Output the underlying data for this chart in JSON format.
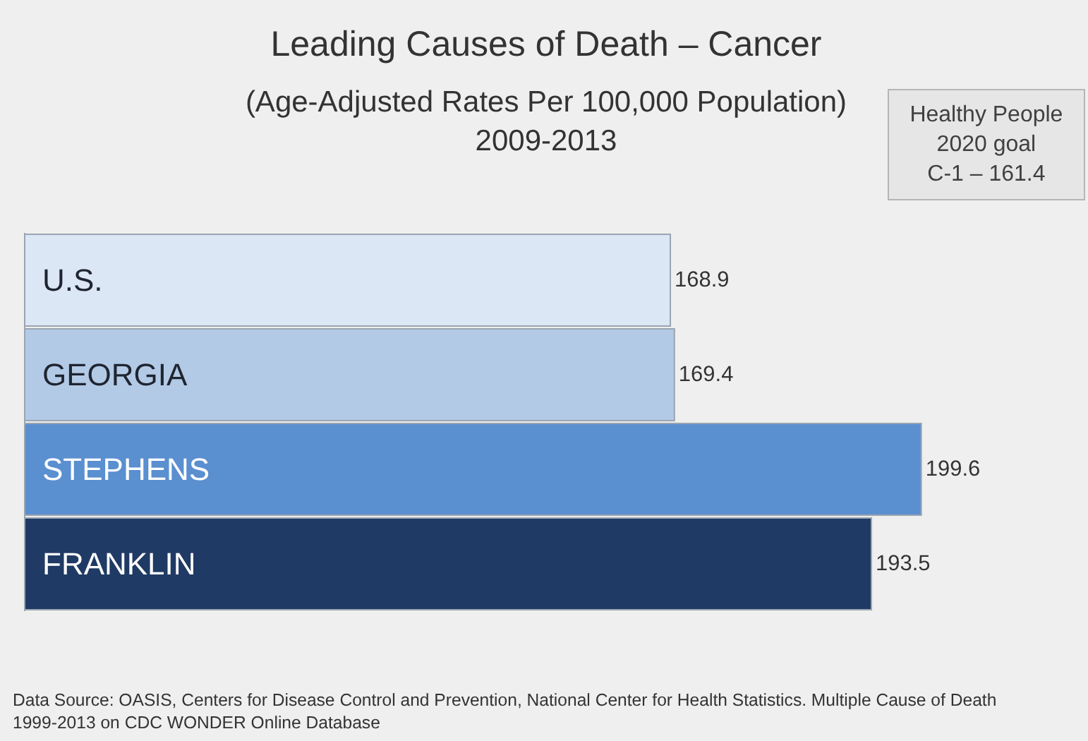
{
  "chart_data": {
    "type": "bar",
    "orientation": "horizontal",
    "title": "Leading Causes of Death – Cancer",
    "subtitle": "(Age-Adjusted Rates Per 100,000 Population)\n2009-2013",
    "categories": [
      "U.S.",
      "GEORGIA",
      "STEPHENS",
      "FRANKLIN"
    ],
    "values": [
      168.9,
      169.4,
      199.6,
      193.5
    ],
    "colors": [
      "#dce7f5",
      "#b3cae6",
      "#5a8fd0",
      "#1f3a64"
    ],
    "xlim": [
      90,
      220
    ],
    "data_labels": true,
    "tick_labels": "y",
    "annotations": [
      "Healthy People\n2020 goal\nC-1 – 161.4",
      "Data Source: OASIS, Centers for Disease Control and Prevention, National Center for Health Statistics. Multiple Cause of Death\n1999-2013 on CDC WONDER Online Database"
    ]
  }
}
